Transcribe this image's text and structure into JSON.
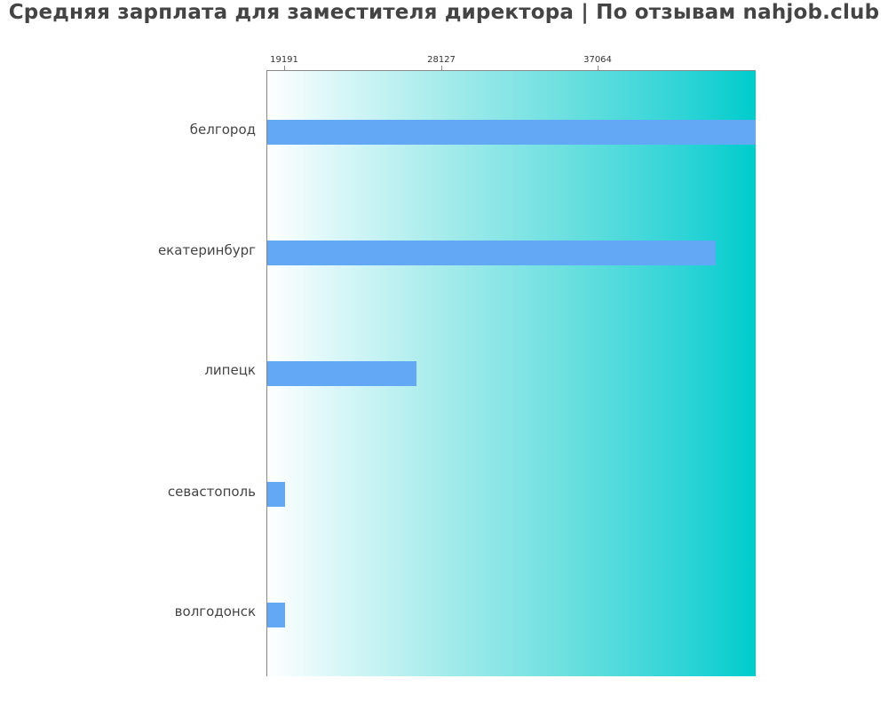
{
  "title": "Средняя зарплата для заместителя директора | По отзывам nahjob.club",
  "colors": {
    "bar": "#62a8f4",
    "gradient_start": "#ffffff",
    "gradient_end": "#00cccc",
    "text": "#444444"
  },
  "axis": {
    "ticks": [
      {
        "label": "19191",
        "value": 19191
      },
      {
        "label": "28127",
        "value": 28127
      },
      {
        "label": "37064",
        "value": 37064
      }
    ]
  },
  "chart_data": {
    "type": "bar",
    "orientation": "horizontal",
    "title": "Средняя зарплата для заместителя директора | По отзывам nahjob.club",
    "xlabel": "",
    "ylabel": "",
    "categories": [
      "белгород",
      "екатеринбург",
      "липецк",
      "севастополь",
      "волгодонск"
    ],
    "values": [
      46070,
      43790,
      26740,
      19240,
      19240
    ],
    "xlim": [
      18180,
      46070
    ],
    "x_ticks": [
      19191,
      28127,
      37064
    ],
    "tick_position": "top",
    "grid": false,
    "legend": null
  }
}
